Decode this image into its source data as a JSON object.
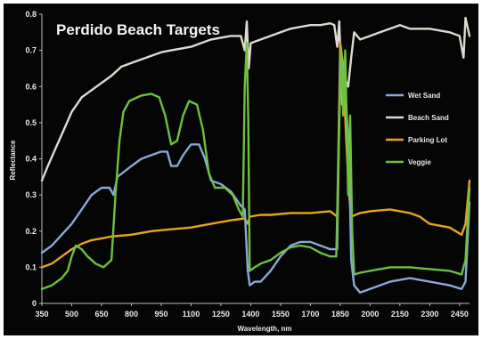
{
  "chart_data": {
    "type": "line",
    "title": "Perdido Beach Targets",
    "xlabel": "Wavelength, nm",
    "ylabel": "Reflectance",
    "xlim": [
      350,
      2500
    ],
    "ylim": [
      0,
      0.8
    ],
    "x_ticks": [
      "350",
      "500",
      "650",
      "800",
      "950",
      "1100",
      "1250",
      "1400",
      "1550",
      "1700",
      "1850",
      "2000",
      "2150",
      "2300",
      "2450"
    ],
    "y_ticks": [
      "0",
      "0.1",
      "0.2",
      "0.3",
      "0.4",
      "0.5",
      "0.6",
      "0.7",
      "0.8"
    ],
    "grid": false,
    "legend_position": "right",
    "series": [
      {
        "name": "Wet Sand",
        "color": "#8aa8d8",
        "points": [
          [
            350,
            0.14
          ],
          [
            400,
            0.16
          ],
          [
            450,
            0.19
          ],
          [
            500,
            0.22
          ],
          [
            550,
            0.26
          ],
          [
            600,
            0.3
          ],
          [
            650,
            0.32
          ],
          [
            690,
            0.32
          ],
          [
            710,
            0.3
          ],
          [
            730,
            0.35
          ],
          [
            800,
            0.38
          ],
          [
            850,
            0.4
          ],
          [
            900,
            0.41
          ],
          [
            950,
            0.42
          ],
          [
            980,
            0.42
          ],
          [
            1000,
            0.38
          ],
          [
            1030,
            0.38
          ],
          [
            1060,
            0.41
          ],
          [
            1100,
            0.44
          ],
          [
            1140,
            0.44
          ],
          [
            1170,
            0.4
          ],
          [
            1200,
            0.34
          ],
          [
            1250,
            0.33
          ],
          [
            1300,
            0.31
          ],
          [
            1350,
            0.27
          ],
          [
            1370,
            0.26
          ],
          [
            1385,
            0.09
          ],
          [
            1395,
            0.05
          ],
          [
            1420,
            0.06
          ],
          [
            1450,
            0.06
          ],
          [
            1500,
            0.09
          ],
          [
            1550,
            0.13
          ],
          [
            1600,
            0.16
          ],
          [
            1650,
            0.17
          ],
          [
            1700,
            0.17
          ],
          [
            1750,
            0.16
          ],
          [
            1800,
            0.15
          ],
          [
            1820,
            0.15
          ],
          [
            1835,
            0.15
          ],
          [
            1850,
            0.68
          ],
          [
            1865,
            0.65
          ],
          [
            1880,
            0.55
          ],
          [
            1895,
            0.4
          ],
          [
            1905,
            0.12
          ],
          [
            1920,
            0.05
          ],
          [
            1950,
            0.03
          ],
          [
            2000,
            0.04
          ],
          [
            2100,
            0.06
          ],
          [
            2200,
            0.07
          ],
          [
            2300,
            0.06
          ],
          [
            2400,
            0.05
          ],
          [
            2460,
            0.04
          ],
          [
            2480,
            0.06
          ],
          [
            2500,
            0.28
          ]
        ]
      },
      {
        "name": "Beach Sand",
        "color": "#dedad0",
        "points": [
          [
            350,
            0.34
          ],
          [
            380,
            0.38
          ],
          [
            420,
            0.43
          ],
          [
            460,
            0.48
          ],
          [
            500,
            0.53
          ],
          [
            550,
            0.57
          ],
          [
            600,
            0.59
          ],
          [
            650,
            0.61
          ],
          [
            700,
            0.63
          ],
          [
            750,
            0.655
          ],
          [
            800,
            0.665
          ],
          [
            850,
            0.675
          ],
          [
            900,
            0.685
          ],
          [
            950,
            0.695
          ],
          [
            1000,
            0.7
          ],
          [
            1050,
            0.705
          ],
          [
            1100,
            0.71
          ],
          [
            1150,
            0.72
          ],
          [
            1200,
            0.73
          ],
          [
            1250,
            0.735
          ],
          [
            1300,
            0.74
          ],
          [
            1350,
            0.74
          ],
          [
            1370,
            0.7
          ],
          [
            1380,
            0.78
          ],
          [
            1390,
            0.65
          ],
          [
            1400,
            0.72
          ],
          [
            1450,
            0.73
          ],
          [
            1500,
            0.74
          ],
          [
            1550,
            0.75
          ],
          [
            1600,
            0.76
          ],
          [
            1650,
            0.765
          ],
          [
            1700,
            0.77
          ],
          [
            1750,
            0.77
          ],
          [
            1800,
            0.775
          ],
          [
            1820,
            0.77
          ],
          [
            1835,
            0.71
          ],
          [
            1845,
            0.78
          ],
          [
            1860,
            0.55
          ],
          [
            1875,
            0.62
          ],
          [
            1890,
            0.6
          ],
          [
            1905,
            0.68
          ],
          [
            1920,
            0.75
          ],
          [
            1950,
            0.73
          ],
          [
            2000,
            0.74
          ],
          [
            2050,
            0.75
          ],
          [
            2100,
            0.76
          ],
          [
            2150,
            0.77
          ],
          [
            2200,
            0.76
          ],
          [
            2300,
            0.76
          ],
          [
            2400,
            0.75
          ],
          [
            2450,
            0.74
          ],
          [
            2470,
            0.68
          ],
          [
            2480,
            0.79
          ],
          [
            2500,
            0.74
          ]
        ]
      },
      {
        "name": "Parking Lot",
        "color": "#e8a51e",
        "points": [
          [
            350,
            0.1
          ],
          [
            400,
            0.11
          ],
          [
            450,
            0.13
          ],
          [
            500,
            0.15
          ],
          [
            550,
            0.165
          ],
          [
            600,
            0.175
          ],
          [
            650,
            0.18
          ],
          [
            700,
            0.185
          ],
          [
            800,
            0.19
          ],
          [
            900,
            0.2
          ],
          [
            1000,
            0.205
          ],
          [
            1100,
            0.21
          ],
          [
            1200,
            0.22
          ],
          [
            1300,
            0.23
          ],
          [
            1370,
            0.235
          ],
          [
            1385,
            0.22
          ],
          [
            1395,
            0.24
          ],
          [
            1450,
            0.245
          ],
          [
            1500,
            0.245
          ],
          [
            1600,
            0.25
          ],
          [
            1700,
            0.25
          ],
          [
            1800,
            0.255
          ],
          [
            1835,
            0.24
          ],
          [
            1850,
            0.72
          ],
          [
            1865,
            0.66
          ],
          [
            1880,
            0.45
          ],
          [
            1895,
            0.3
          ],
          [
            1905,
            0.24
          ],
          [
            1950,
            0.25
          ],
          [
            2000,
            0.255
          ],
          [
            2100,
            0.26
          ],
          [
            2200,
            0.25
          ],
          [
            2250,
            0.24
          ],
          [
            2300,
            0.22
          ],
          [
            2400,
            0.21
          ],
          [
            2460,
            0.19
          ],
          [
            2480,
            0.22
          ],
          [
            2500,
            0.34
          ]
        ]
      },
      {
        "name": "Veggie",
        "color": "#6ec03e",
        "points": [
          [
            350,
            0.04
          ],
          [
            400,
            0.05
          ],
          [
            450,
            0.07
          ],
          [
            480,
            0.09
          ],
          [
            500,
            0.13
          ],
          [
            520,
            0.16
          ],
          [
            550,
            0.15
          ],
          [
            580,
            0.13
          ],
          [
            620,
            0.11
          ],
          [
            660,
            0.1
          ],
          [
            700,
            0.12
          ],
          [
            720,
            0.3
          ],
          [
            740,
            0.45
          ],
          [
            760,
            0.53
          ],
          [
            790,
            0.56
          ],
          [
            850,
            0.575
          ],
          [
            900,
            0.58
          ],
          [
            940,
            0.57
          ],
          [
            970,
            0.52
          ],
          [
            1000,
            0.44
          ],
          [
            1030,
            0.45
          ],
          [
            1060,
            0.52
          ],
          [
            1090,
            0.56
          ],
          [
            1130,
            0.55
          ],
          [
            1160,
            0.48
          ],
          [
            1190,
            0.36
          ],
          [
            1220,
            0.32
          ],
          [
            1270,
            0.32
          ],
          [
            1310,
            0.3
          ],
          [
            1340,
            0.26
          ],
          [
            1360,
            0.24
          ],
          [
            1370,
            0.6
          ],
          [
            1380,
            0.72
          ],
          [
            1388,
            0.5
          ],
          [
            1395,
            0.09
          ],
          [
            1420,
            0.1
          ],
          [
            1450,
            0.11
          ],
          [
            1500,
            0.12
          ],
          [
            1550,
            0.14
          ],
          [
            1600,
            0.155
          ],
          [
            1650,
            0.16
          ],
          [
            1700,
            0.155
          ],
          [
            1750,
            0.14
          ],
          [
            1800,
            0.13
          ],
          [
            1830,
            0.13
          ],
          [
            1845,
            0.5
          ],
          [
            1855,
            0.7
          ],
          [
            1865,
            0.52
          ],
          [
            1875,
            0.7
          ],
          [
            1890,
            0.3
          ],
          [
            1900,
            0.52
          ],
          [
            1910,
            0.2
          ],
          [
            1920,
            0.08
          ],
          [
            1950,
            0.085
          ],
          [
            2000,
            0.09
          ],
          [
            2100,
            0.1
          ],
          [
            2200,
            0.1
          ],
          [
            2300,
            0.095
          ],
          [
            2400,
            0.09
          ],
          [
            2460,
            0.08
          ],
          [
            2480,
            0.12
          ],
          [
            2500,
            0.32
          ]
        ]
      }
    ]
  }
}
